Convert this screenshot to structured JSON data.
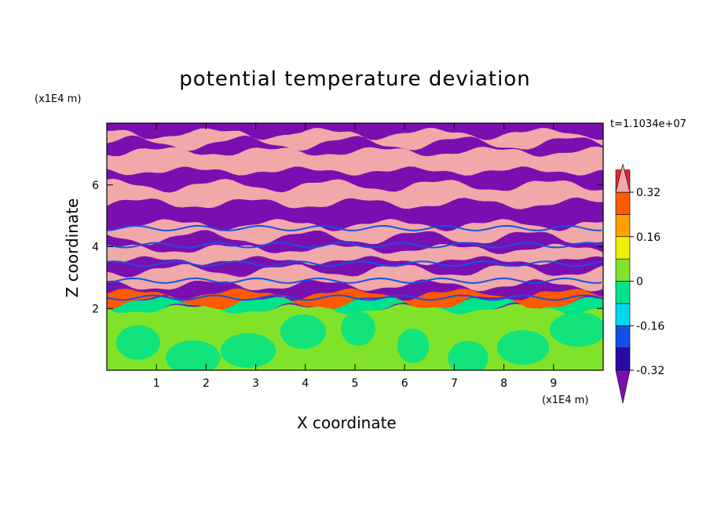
{
  "chart_data": {
    "type": "heatmap",
    "title": "potential temperature deviation",
    "xlabel": "X coordinate",
    "ylabel": "Z coordinate",
    "x_unit": "(x1E4 m)",
    "y_unit": "(x1E4 m)",
    "time_label": "t=1.1034e+07",
    "xlim": [
      0,
      10
    ],
    "ylim": [
      0,
      8
    ],
    "x_ticks": [
      "1",
      "2",
      "3",
      "4",
      "5",
      "6",
      "7",
      "8",
      "9"
    ],
    "y_ticks": [
      "2",
      "4",
      "6"
    ],
    "colorbar": {
      "levels": [
        -0.4,
        -0.32,
        -0.24,
        -0.16,
        -0.08,
        0,
        0.08,
        0.16,
        0.24,
        0.32,
        0.4
      ],
      "tick_labels": [
        "0.32",
        "0.16",
        "0",
        "-0.16",
        "-0.32"
      ],
      "tick_values": [
        0.32,
        0.16,
        0,
        -0.16,
        -0.32
      ],
      "colors": [
        "#7a0fb0",
        "#2a0aa8",
        "#1550e6",
        "#00d7f0",
        "#00e38a",
        "#80e32a",
        "#f0f000",
        "#ffa000",
        "#ff5a00",
        "#e02828",
        "#f0a8a8"
      ],
      "extend": "both"
    },
    "bands": [
      {
        "z0": 0.0,
        "z1": 2.0,
        "value": 0.04
      },
      {
        "z0": 2.0,
        "z1": 2.2,
        "value": -0.08
      },
      {
        "z0": 2.2,
        "z1": 2.5,
        "value": 0.3
      },
      {
        "z0": 2.5,
        "z1": 2.75,
        "value": -0.36
      },
      {
        "z0": 2.75,
        "z1": 3.25,
        "value": 0.42
      },
      {
        "z0": 3.25,
        "z1": 3.55,
        "value": -0.42
      },
      {
        "z0": 3.55,
        "z1": 3.95,
        "value": 0.42
      },
      {
        "z0": 3.95,
        "z1": 4.3,
        "value": -0.36
      },
      {
        "z0": 4.3,
        "z1": 4.75,
        "value": 0.42
      },
      {
        "z0": 4.75,
        "z1": 5.4,
        "value": -0.42
      },
      {
        "z0": 5.4,
        "z1": 6.0,
        "value": 0.42
      },
      {
        "z0": 6.0,
        "z1": 6.45,
        "value": -0.42
      },
      {
        "z0": 6.45,
        "z1": 7.1,
        "value": 0.42
      },
      {
        "z0": 7.1,
        "z1": 7.35,
        "value": -0.42
      },
      {
        "z0": 7.35,
        "z1": 7.7,
        "value": 0.42
      },
      {
        "z0": 7.7,
        "z1": 8.0,
        "value": -0.42
      }
    ]
  }
}
